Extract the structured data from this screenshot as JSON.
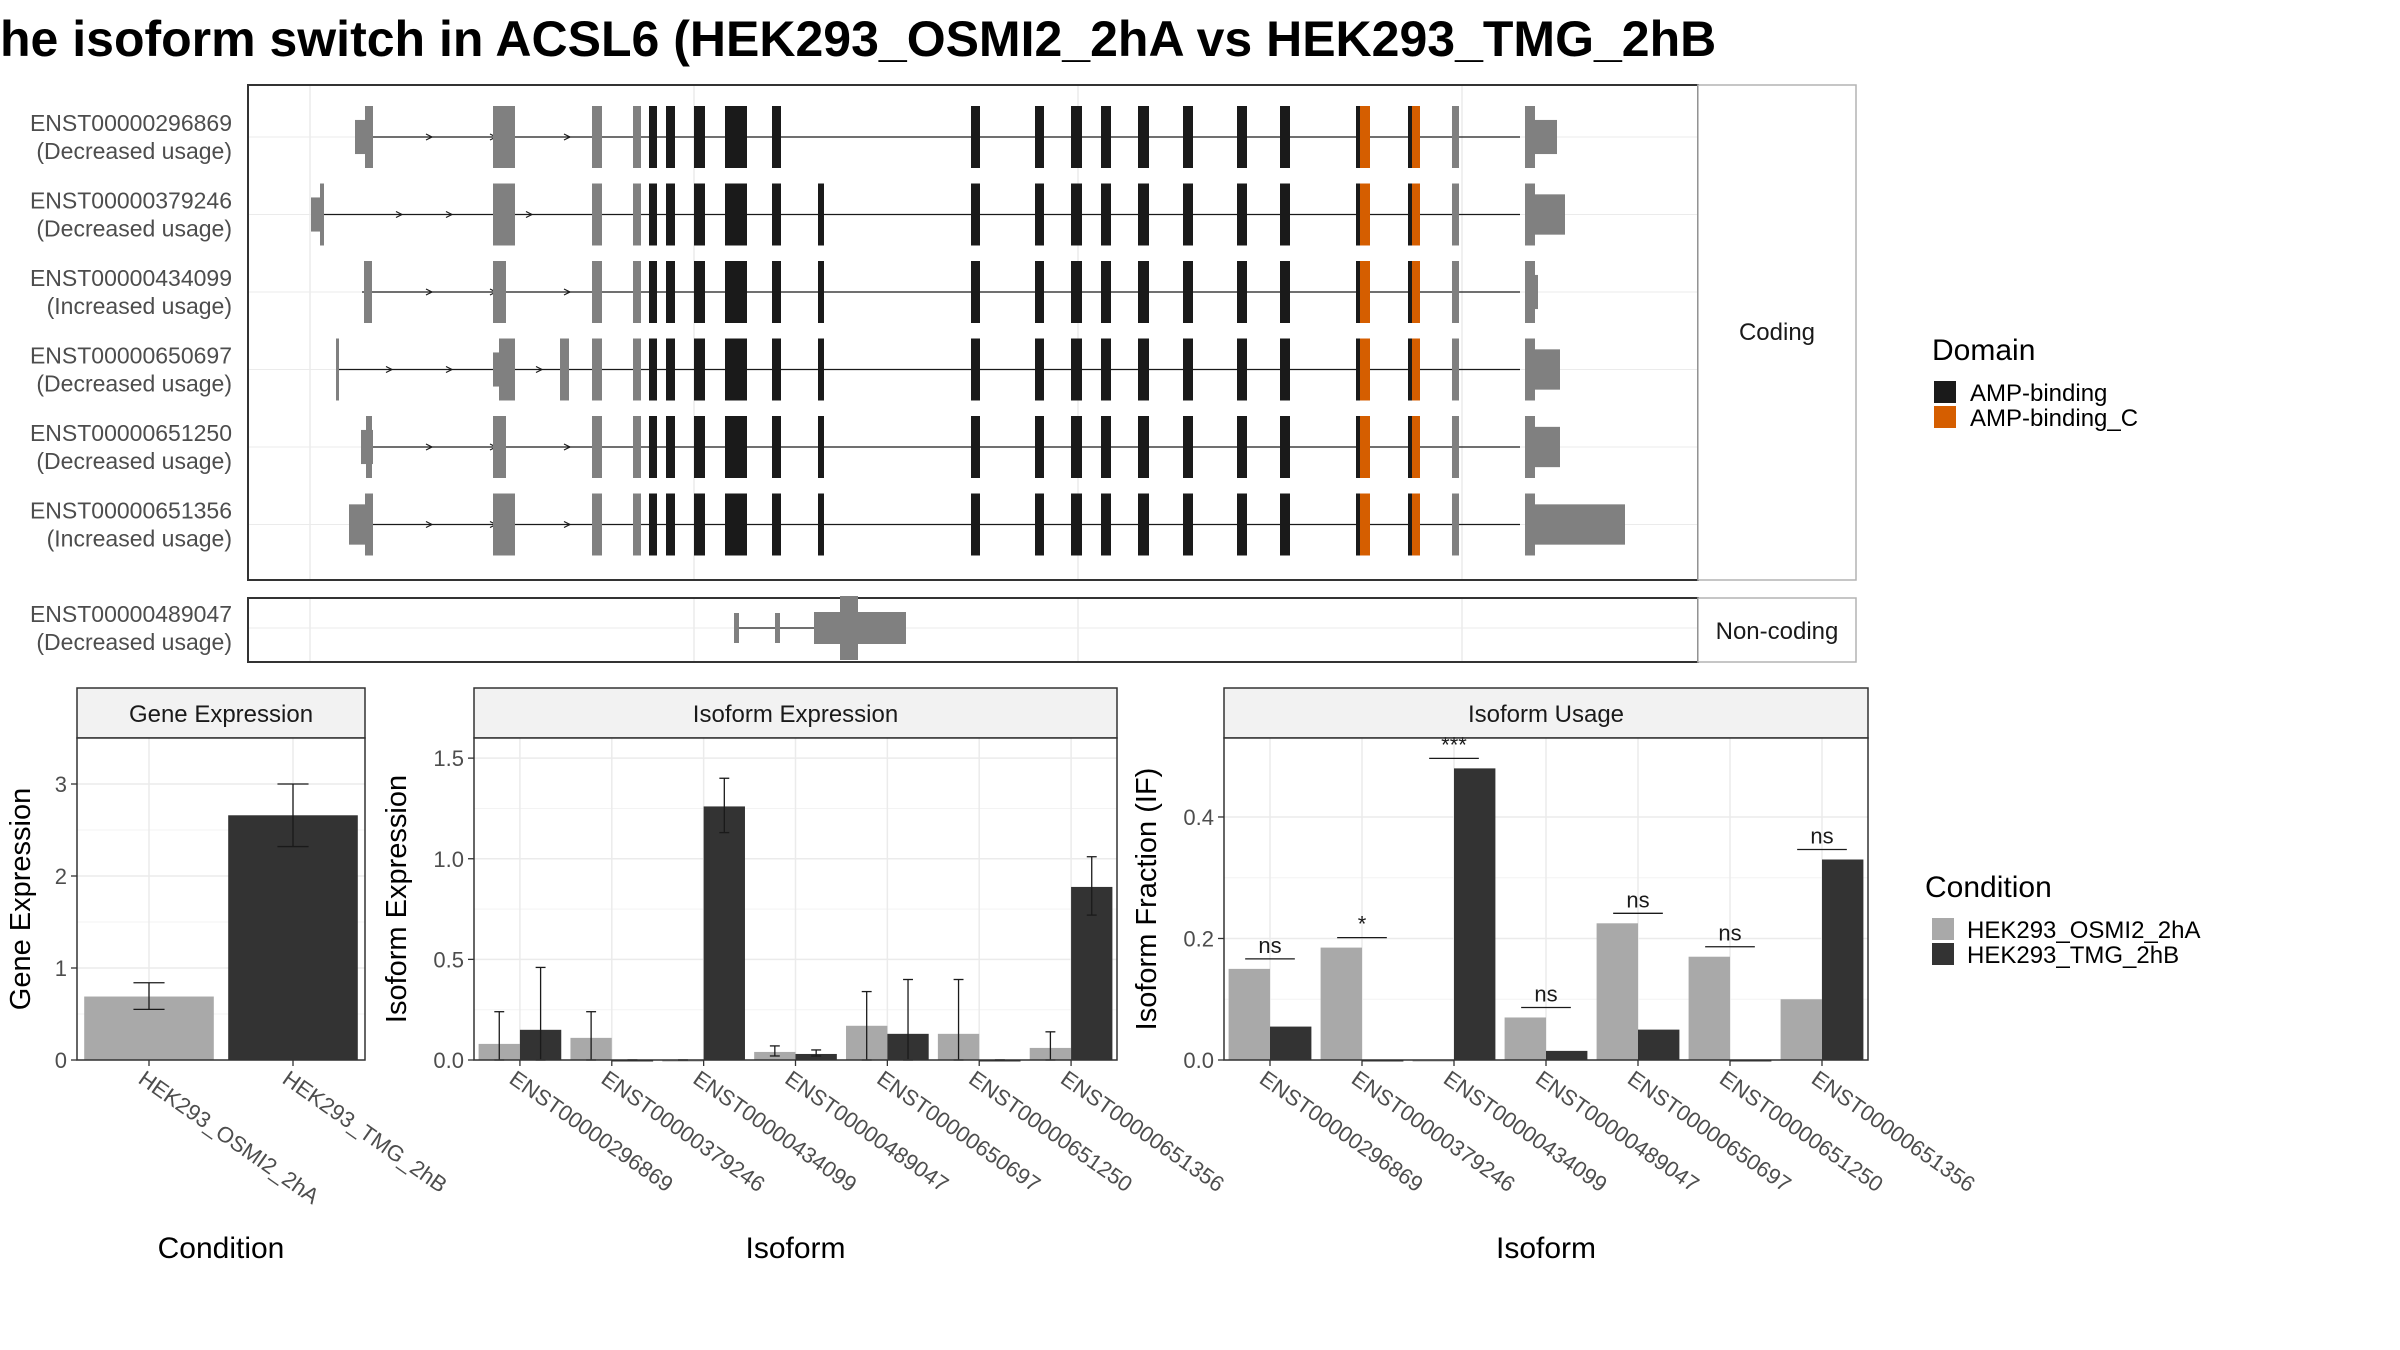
{
  "title": "he isoform switch in ACSL6 (HEK293_OSMI2_2hA vs HEK293_TMG_2hB",
  "colors": {
    "exon_utr": "#808080",
    "amp_binding": "#1a1a1a",
    "amp_binding_c": "#d55e00",
    "cond1": "#a9a9a9",
    "cond2": "#333333",
    "strip": "#f2f2f2",
    "grid": "#ebebeb"
  },
  "structure": {
    "coding_label": "Coding",
    "noncoding_label": "Non-coding",
    "coding_isoforms": [
      {
        "id": "ENST00000296869",
        "usage": "(Decreased usage)"
      },
      {
        "id": "ENST00000379246",
        "usage": "(Decreased usage)"
      },
      {
        "id": "ENST00000434099",
        "usage": "(Increased usage)"
      },
      {
        "id": "ENST00000650697",
        "usage": "(Decreased usage)"
      },
      {
        "id": "ENST00000651250",
        "usage": "(Decreased usage)"
      },
      {
        "id": "ENST00000651356",
        "usage": "(Increased usage)"
      }
    ],
    "noncoding_isoforms": [
      {
        "id": "ENST00000489047",
        "usage": "(Decreased usage)"
      }
    ]
  },
  "legend_domain": {
    "title": "Domain",
    "items": [
      {
        "label": "AMP-binding",
        "color": "#1a1a1a"
      },
      {
        "label": "AMP-binding_C",
        "color": "#d55e00"
      }
    ]
  },
  "legend_condition": {
    "title": "Condition",
    "items": [
      {
        "label": "HEK293_OSMI2_2hA",
        "color": "#a9a9a9"
      },
      {
        "label": "HEK293_TMG_2hB",
        "color": "#333333"
      }
    ]
  },
  "chart_data": [
    {
      "type": "bar",
      "panel_title": "Gene Expression",
      "xlabel": "Condition",
      "ylabel": "Gene Expression",
      "ylim": [
        0,
        3.5
      ],
      "yticks": [
        0,
        1,
        2,
        3
      ],
      "categories": [
        "HEK293_OSMI2_2hA",
        "HEK293_TMG_2hB"
      ],
      "values": [
        0.69,
        2.66
      ],
      "err_low": [
        0.55,
        2.32
      ],
      "err_high": [
        0.84,
        3.0
      ]
    },
    {
      "type": "bar",
      "panel_title": "Isoform Expression",
      "xlabel": "Isoform",
      "ylabel": "Isoform Expression",
      "ylim": [
        0,
        1.6
      ],
      "yticks": [
        0.0,
        0.5,
        1.0,
        1.5
      ],
      "ytick_labels": [
        "0.0",
        "0.5",
        "1.0",
        "1.5"
      ],
      "categories": [
        "ENST00000296869",
        "ENST00000379246",
        "ENST00000434099",
        "ENST00000489047",
        "ENST00000650697",
        "ENST00000651250",
        "ENST00000651356"
      ],
      "series": [
        {
          "name": "HEK293_OSMI2_2hA",
          "values": [
            0.08,
            0.11,
            0.0,
            0.04,
            0.17,
            0.13,
            0.06
          ],
          "err_low": [
            0.0,
            0.0,
            0.0,
            0.02,
            0.0,
            0.0,
            0.0
          ],
          "err_high": [
            0.24,
            0.24,
            0.0,
            0.07,
            0.34,
            0.4,
            0.14
          ]
        },
        {
          "name": "HEK293_TMG_2hB",
          "values": [
            0.15,
            0.0,
            1.26,
            0.03,
            0.13,
            0.0,
            0.86
          ],
          "err_low": [
            0.0,
            0.0,
            1.13,
            0.02,
            0.0,
            0.0,
            0.72
          ],
          "err_high": [
            0.46,
            0.0,
            1.4,
            0.05,
            0.4,
            0.0,
            1.01
          ]
        }
      ]
    },
    {
      "type": "bar",
      "panel_title": "Isoform Usage",
      "xlabel": "Isoform",
      "ylabel": "Isoform Fraction (IF)",
      "ylim": [
        0,
        0.53
      ],
      "yticks": [
        0.0,
        0.2,
        0.4
      ],
      "ytick_labels": [
        "0.0",
        "0.2",
        "0.4"
      ],
      "categories": [
        "ENST00000296869",
        "ENST00000379246",
        "ENST00000434099",
        "ENST00000489047",
        "ENST00000650697",
        "ENST00000651250",
        "ENST00000651356"
      ],
      "series": [
        {
          "name": "HEK293_OSMI2_2hA",
          "values": [
            0.15,
            0.185,
            0.0,
            0.07,
            0.225,
            0.17,
            0.1
          ]
        },
        {
          "name": "HEK293_TMG_2hB",
          "values": [
            0.055,
            0.0,
            0.48,
            0.015,
            0.05,
            0.0,
            0.33
          ]
        }
      ],
      "significance": [
        "ns",
        "*",
        "***",
        "ns",
        "ns",
        "ns",
        "ns"
      ]
    }
  ]
}
